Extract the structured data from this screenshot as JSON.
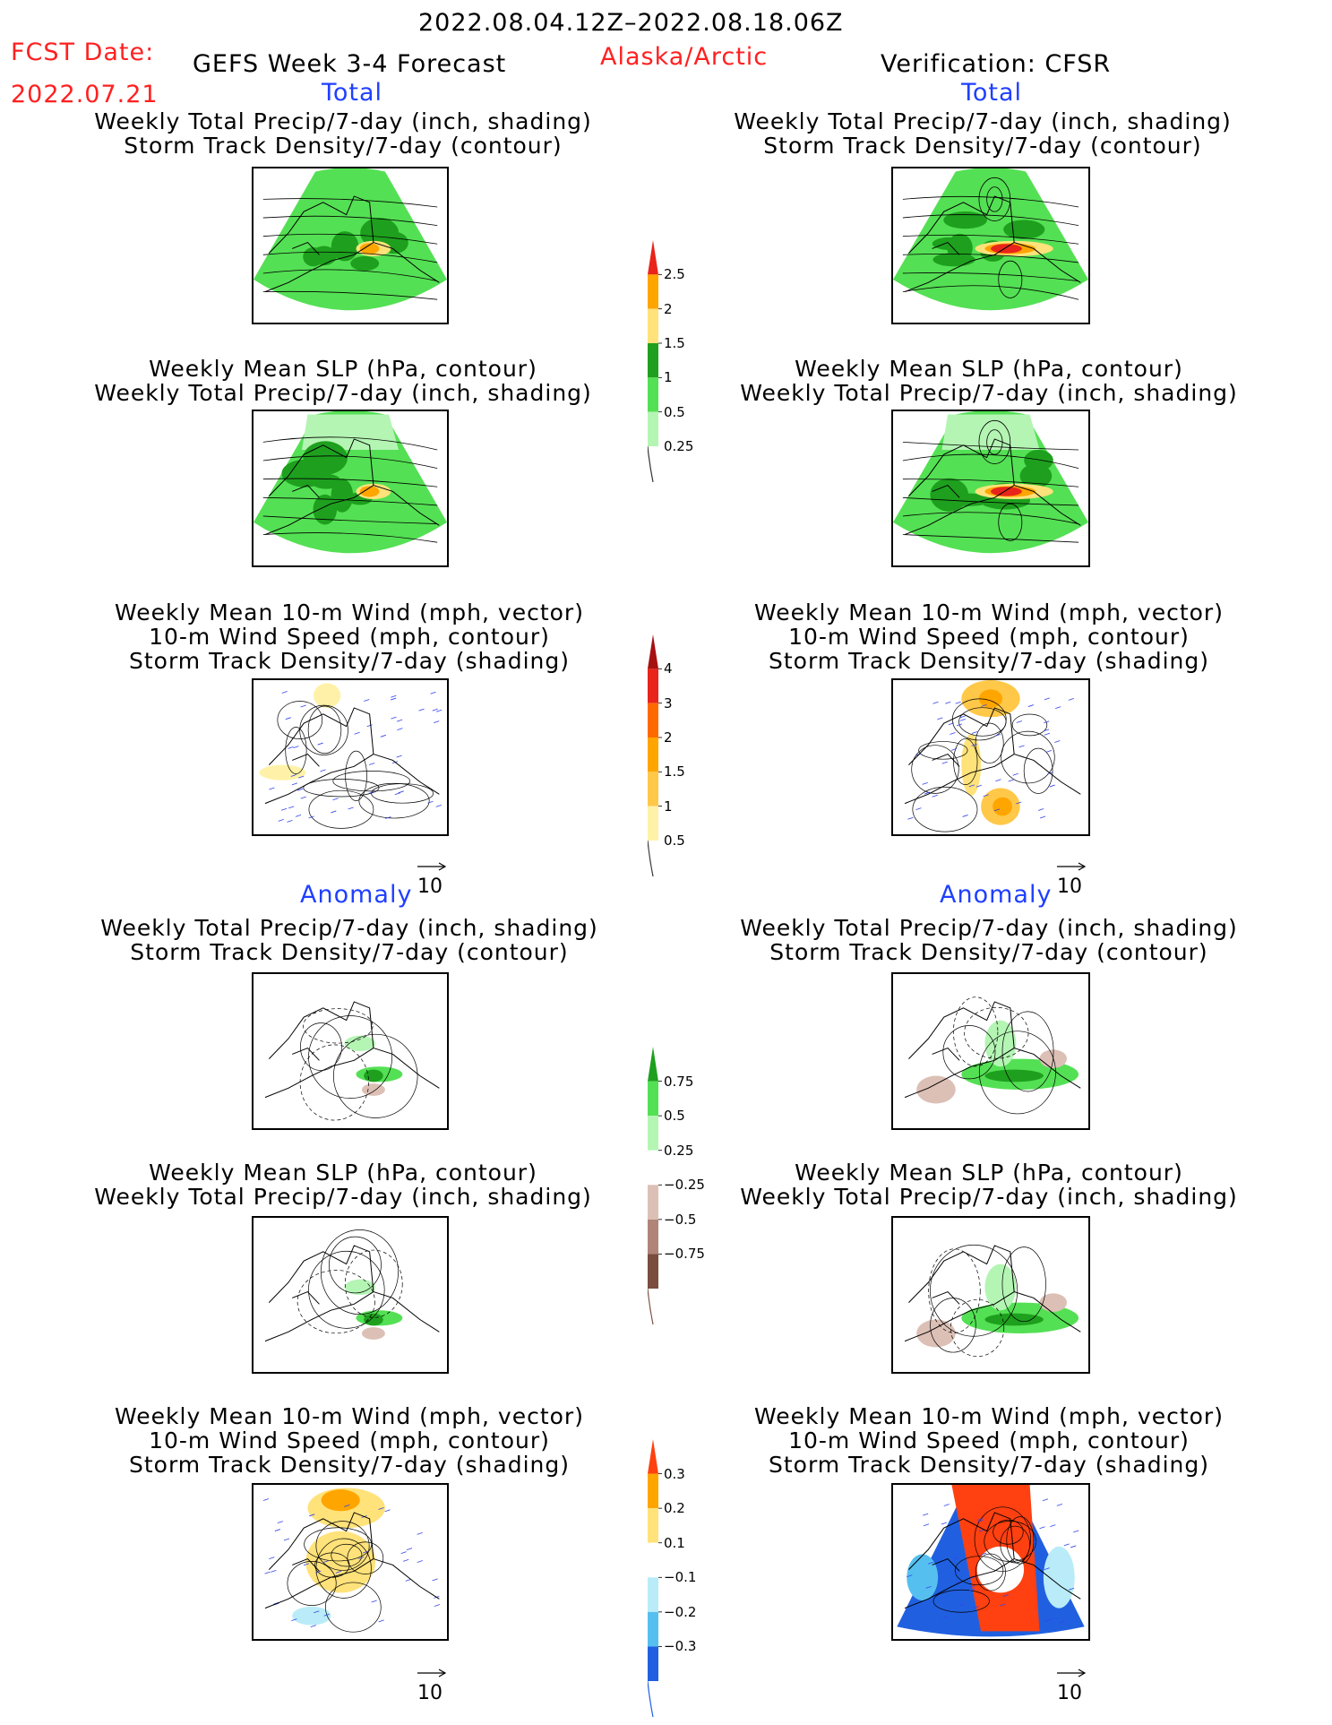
{
  "header": {
    "valid_range": "2022.08.04.12Z–2022.08.18.06Z",
    "fcst_label": "FCST Date:",
    "fcst_date": "2022.07.21",
    "model": "GEFS Week 3-4 Forecast",
    "region": "Alaska/Arctic",
    "verification": "Verification: CFSR"
  },
  "sections": {
    "total": "Total",
    "anomaly": "Anomaly"
  },
  "panels": [
    {
      "id": "t-precip-left",
      "title": [
        "Weekly Total Precip/7-day (inch, shading)",
        "Storm Track Density/7-day (contour)"
      ]
    },
    {
      "id": "t-precip-right",
      "title": [
        "Weekly Total Precip/7-day (inch, shading)",
        "Storm Track Density/7-day (contour)"
      ]
    },
    {
      "id": "t-slp-left",
      "title": [
        "Weekly Mean SLP (hPa, contour)",
        "Weekly Total Precip/7-day (inch, shading)"
      ]
    },
    {
      "id": "t-slp-right",
      "title": [
        "Weekly Mean SLP (hPa, contour)",
        "Weekly Total Precip/7-day (inch, shading)"
      ]
    },
    {
      "id": "t-wind-left",
      "title": [
        "Weekly Mean 10-m Wind (mph, vector)",
        "10-m Wind Speed (mph, contour)",
        "Storm Track Density/7-day (shading)"
      ]
    },
    {
      "id": "t-wind-right",
      "title": [
        "Weekly Mean 10-m Wind (mph, vector)",
        "10-m Wind Speed (mph, contour)",
        "Storm Track Density/7-day (shading)"
      ]
    },
    {
      "id": "a-precip-left",
      "title": [
        "Weekly Total Precip/7-day (inch, shading)",
        "Storm Track Density/7-day (contour)"
      ]
    },
    {
      "id": "a-precip-right",
      "title": [
        "Weekly Total Precip/7-day (inch, shading)",
        "Storm Track Density/7-day (contour)"
      ]
    },
    {
      "id": "a-slp-left",
      "title": [
        "Weekly Mean SLP (hPa, contour)",
        "Weekly Total Precip/7-day (inch, shading)"
      ]
    },
    {
      "id": "a-slp-right",
      "title": [
        "Weekly Mean SLP (hPa, contour)",
        "Weekly Total Precip/7-day (inch, shading)"
      ]
    },
    {
      "id": "a-wind-left",
      "title": [
        "Weekly Mean 10-m Wind (mph, vector)",
        "10-m Wind Speed (mph, contour)",
        "Storm Track Density/7-day (shading)"
      ]
    },
    {
      "id": "a-wind-right",
      "title": [
        "Weekly Mean 10-m Wind (mph, vector)",
        "10-m Wind Speed (mph, contour)",
        "Storm Track Density/7-day (shading)"
      ]
    }
  ],
  "vector_ref": "10",
  "colorbars": {
    "total_precip": {
      "labels": [
        "2.5",
        "2",
        "1.5",
        "1",
        "0.5",
        "0.25"
      ],
      "colors": [
        "#e8241b",
        "#ffa500",
        "#ffe27a",
        "#1ea01e",
        "#54e054",
        "#b4f5b4"
      ]
    },
    "total_storm": {
      "labels": [
        "4",
        "3",
        "2",
        "1.5",
        "1",
        "0.5"
      ],
      "colors": [
        "#a51111",
        "#e8241b",
        "#ff6a00",
        "#ffa500",
        "#ffc848",
        "#fff2a8"
      ]
    },
    "anom_precip": {
      "labels": [
        "0.75",
        "0.5",
        "0.25",
        "−0.25",
        "−0.5",
        "−0.75"
      ],
      "colors": [
        "#1ea01e",
        "#54e054",
        "#b4f5b4",
        "#ffffff",
        "#dcc0b6",
        "#b08478",
        "#7a4d3e"
      ]
    },
    "anom_storm": {
      "labels": [
        "0.3",
        "0.2",
        "0.1",
        "−0.1",
        "−0.2",
        "−0.3"
      ],
      "colors": [
        "#ff4010",
        "#ffa500",
        "#ffe27a",
        "#ffffff",
        "#b9ecf8",
        "#55c0f0",
        "#2060e0"
      ]
    }
  },
  "colors": {
    "header_red": "#ff2020",
    "section_blue": "#1f3fff"
  }
}
